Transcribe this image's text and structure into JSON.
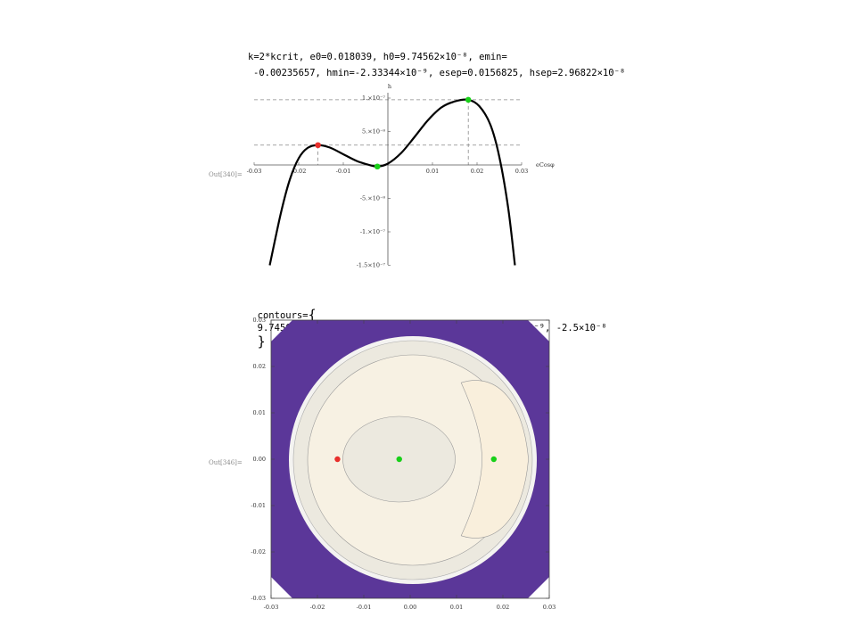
{
  "header": {
    "line1": "k=2*kcrit, e0=0.018039, h0=9.74562×10⁻⁸, emin=",
    "line2": "-0.00235657, hmin=-2.33344×10⁻⁹, esep=0.0156825, hsep=2.96822×10⁻⁸"
  },
  "contours_line": {
    "prefix": "contours=",
    "values": "9.74562×10⁻⁸, 7.5×10⁻⁸, 2.96822×10⁻⁸, -2.33344×10⁻⁹, -2.5×10⁻⁸"
  },
  "out_labels": [
    "Out[340]=",
    "Out[346]="
  ],
  "colors": {
    "curve": "#000000",
    "max_point": "#e8302c",
    "min_point": "#19d019",
    "outer_region": "#5b3799",
    "disk_fill": "#ece9df",
    "inner_fill": "#f7f1e3"
  },
  "chart_data": [
    {
      "type": "line",
      "title": "",
      "xlabel": "eCosφ",
      "ylabel": "h",
      "xlim": [
        -0.03,
        0.03
      ],
      "ylim": [
        -1.5e-07,
        1e-07
      ],
      "xticks": [
        -0.03,
        -0.02,
        -0.01,
        0.01,
        0.02,
        0.03
      ],
      "xtick_labels": [
        "-0.03",
        "-0.02",
        "-0.01",
        "0.01",
        "0.02",
        "0.03"
      ],
      "yticks": [
        1e-07,
        5e-08,
        -5e-08,
        -1e-07,
        -1.5e-07
      ],
      "ytick_labels": [
        "1.×10⁻⁷",
        "5.×10⁻⁸",
        "-5.×10⁻⁸",
        "-1.×10⁻⁷",
        "-1.5×10⁻⁷"
      ],
      "curve": {
        "x": [
          -0.0265,
          -0.024,
          -0.022,
          -0.02,
          -0.018,
          -0.0157,
          -0.013,
          -0.01,
          -0.007,
          -0.0045,
          -0.00236,
          0.0,
          0.003,
          0.006,
          0.009,
          0.012,
          0.015,
          0.018,
          0.0205,
          0.023,
          0.025,
          0.027,
          0.0285
        ],
        "y": [
          -1.5e-07,
          -7.2e-08,
          -2.2e-08,
          1e-08,
          2.55e-08,
          2.968e-08,
          2.6e-08,
          1.6e-08,
          6e-09,
          6e-10,
          -2.333e-09,
          2e-09,
          1.8e-08,
          4.2e-08,
          6.7e-08,
          8.6e-08,
          9.5e-08,
          9.7456e-08,
          8.8e-08,
          6e-08,
          1.2e-08,
          -6.5e-08,
          -1.5e-07
        ]
      },
      "points": [
        {
          "x": -0.0156825,
          "y": 2.96822e-08,
          "color": "red"
        },
        {
          "x": -0.00235657,
          "y": -2.33344e-09,
          "color": "green"
        },
        {
          "x": 0.018039,
          "y": 9.74562e-08,
          "color": "green"
        }
      ],
      "guides_y": [
        9.74562e-08,
        2.96822e-08
      ]
    },
    {
      "type": "contour",
      "xlim": [
        -0.03,
        0.03
      ],
      "ylim": [
        -0.03,
        0.03
      ],
      "xticks": [
        -0.03,
        -0.02,
        -0.01,
        0.0,
        0.01,
        0.02,
        0.03
      ],
      "xtick_labels": [
        "-0.03",
        "-0.02",
        "-0.01",
        "0.00",
        "0.01",
        "0.02",
        "0.03"
      ],
      "yticks": [
        0.03,
        0.02,
        0.01,
        0.0,
        -0.01,
        -0.02,
        -0.03
      ],
      "ytick_labels": [
        "0.03",
        "0.02",
        "0.01",
        "0.00",
        "-0.01",
        "-0.02",
        "-0.03"
      ],
      "contour_levels": [
        9.74562e-08,
        7.5e-08,
        2.96822e-08,
        -2.33344e-09,
        -2.5e-08
      ],
      "points": [
        {
          "x": -0.0156825,
          "y": 0.0,
          "color": "red"
        },
        {
          "x": -0.00235657,
          "y": 0.0,
          "color": "green"
        },
        {
          "x": 0.018039,
          "y": 0.0,
          "color": "green"
        }
      ]
    }
  ]
}
